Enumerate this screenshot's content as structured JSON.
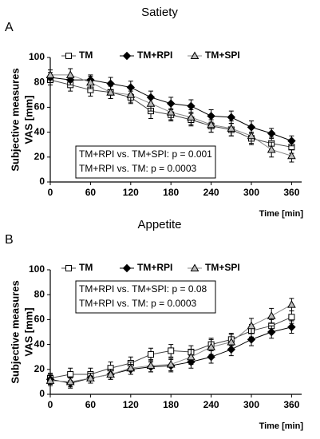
{
  "chart_data": [
    {
      "type": "line",
      "panel": "A",
      "title": "Satiety",
      "ylabel": [
        "Subjective measures",
        "VAS [mm]"
      ],
      "xlabel": "Time [min]",
      "x": [
        0,
        30,
        60,
        90,
        120,
        150,
        180,
        210,
        240,
        270,
        300,
        330,
        360
      ],
      "xlim": [
        0,
        375
      ],
      "xticks": [
        0,
        60,
        120,
        180,
        240,
        300,
        360
      ],
      "ylim": [
        0,
        100
      ],
      "yticks": [
        0,
        20,
        40,
        60,
        80,
        100
      ],
      "annotation": [
        "TM+RPI vs. TM+SPI: p = 0.001",
        "TM+RPI vs. TM: p = 0.0003"
      ],
      "series": [
        {
          "name": "TM",
          "color": "#444444",
          "marker": "square",
          "marker_fill": "#ffffff",
          "values": [
            82,
            78,
            74,
            72,
            68,
            57,
            54,
            50,
            45,
            42,
            35,
            31,
            28
          ],
          "errors": [
            4,
            5,
            5,
            5,
            5,
            6,
            5,
            5,
            5,
            5,
            5,
            5,
            5
          ]
        },
        {
          "name": "TM+RPI",
          "color": "#000000",
          "marker": "diamond",
          "marker_fill": "#000000",
          "values": [
            84,
            82,
            82,
            79,
            76,
            68,
            63,
            61,
            53,
            52,
            44,
            39,
            33
          ],
          "errors": [
            4,
            4,
            4,
            5,
            5,
            5,
            5,
            5,
            5,
            5,
            5,
            4,
            4
          ]
        },
        {
          "name": "TM+SPI",
          "color": "#888888",
          "marker": "triangle",
          "marker_fill": "#bbbbbb",
          "values": [
            86,
            86,
            80,
            72,
            70,
            63,
            56,
            52,
            46,
            43,
            37,
            26,
            21
          ],
          "errors": [
            4,
            5,
            5,
            5,
            6,
            6,
            6,
            6,
            6,
            6,
            6,
            6,
            5
          ]
        }
      ]
    },
    {
      "type": "line",
      "panel": "B",
      "title": "Appetite",
      "ylabel": [
        "Subjective measures",
        "VAS [mm]"
      ],
      "xlabel": "Time [min]",
      "x": [
        0,
        30,
        60,
        90,
        120,
        150,
        180,
        210,
        240,
        270,
        300,
        330,
        360
      ],
      "xlim": [
        0,
        375
      ],
      "xticks": [
        0,
        60,
        120,
        180,
        240,
        300,
        360
      ],
      "ylim": [
        0,
        100
      ],
      "yticks": [
        0,
        20,
        40,
        60,
        80,
        100
      ],
      "annotation": [
        "TM+RPI vs. TM+SPI: p = 0.08",
        "TM+RPI vs. TM: p = 0.0003"
      ],
      "series": [
        {
          "name": "TM",
          "color": "#444444",
          "marker": "square",
          "marker_fill": "#ffffff",
          "values": [
            13,
            16,
            16,
            21,
            25,
            32,
            35,
            34,
            40,
            44,
            51,
            55,
            62
          ],
          "errors": [
            4,
            5,
            5,
            5,
            5,
            5,
            5,
            5,
            5,
            5,
            5,
            5,
            5
          ]
        },
        {
          "name": "TM+RPI",
          "color": "#000000",
          "marker": "diamond",
          "marker_fill": "#000000",
          "values": [
            12,
            9,
            13,
            16,
            20,
            22,
            23,
            26,
            30,
            36,
            44,
            50,
            54
          ],
          "errors": [
            4,
            4,
            4,
            4,
            4,
            4,
            5,
            5,
            5,
            5,
            5,
            5,
            5
          ]
        },
        {
          "name": "TM+SPI",
          "color": "#888888",
          "marker": "triangle",
          "marker_fill": "#bbbbbb",
          "values": [
            11,
            10,
            13,
            16,
            21,
            23,
            24,
            30,
            38,
            42,
            55,
            63,
            72
          ],
          "errors": [
            4,
            4,
            4,
            4,
            5,
            5,
            5,
            6,
            6,
            6,
            6,
            6,
            5
          ]
        }
      ]
    }
  ]
}
